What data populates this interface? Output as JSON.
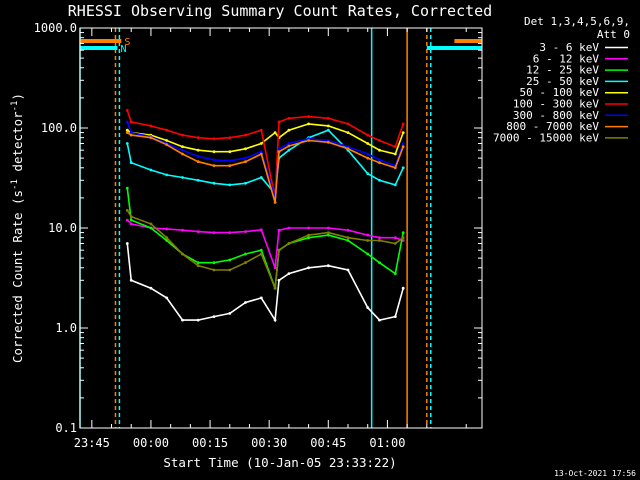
{
  "chart_data": {
    "type": "line",
    "title": "RHESSI Observing Summary Count Rates, Corrected",
    "xlabel": "Start Time (10-Jan-05 23:33:22)",
    "ylabel": "Corrected Count Rate (s",
    "ylabel_sup1": "-1",
    "ylabel_mid": " detector",
    "ylabel_sup2": "-1",
    "ylabel_end": ")",
    "yscale": "log",
    "ylim": [
      0.1,
      1000
    ],
    "xlim_minutes": [
      -18,
      84
    ],
    "x_tick_labels": [
      "23:45",
      "00:00",
      "00:15",
      "00:30",
      "00:45",
      "01:00"
    ],
    "x_tick_minutes": [
      -15,
      0,
      15,
      30,
      45,
      60
    ],
    "y_tick_labels": [
      "0.1",
      "1.0",
      "10.0",
      "100.0",
      "1000.0"
    ],
    "y_tick_values": [
      0.1,
      1,
      10,
      100,
      1000
    ],
    "legend_header": [
      "Det 1,3,4,5,6,9,",
      "Att 0"
    ],
    "legend_placement": "right, outside plot",
    "grid": false,
    "series": [
      {
        "name": "3 - 6 keV",
        "color": "#ffffff",
        "x": [
          -6,
          -5,
          0,
          4,
          8,
          12,
          16,
          20,
          24,
          28,
          31.5,
          32.5,
          35,
          40,
          45,
          50,
          55,
          58,
          62,
          64
        ],
        "y": [
          7,
          3,
          2.5,
          2,
          1.2,
          1.2,
          1.3,
          1.4,
          1.8,
          2.0,
          1.2,
          3.0,
          3.5,
          4.0,
          4.2,
          3.8,
          1.6,
          1.2,
          1.3,
          2.5
        ]
      },
      {
        "name": "6 - 12 keV",
        "color": "#ff00ff",
        "x": [
          -6,
          -5,
          0,
          4,
          8,
          12,
          16,
          20,
          24,
          28,
          31.5,
          32.5,
          35,
          40,
          45,
          50,
          55,
          58,
          62,
          64
        ],
        "y": [
          12,
          11,
          10,
          9.8,
          9.5,
          9.2,
          9.0,
          9.0,
          9.2,
          9.6,
          4.0,
          9.5,
          10,
          10,
          10,
          9.5,
          8.5,
          8.0,
          8.0,
          7.5
        ]
      },
      {
        "name": "12 - 25 keV",
        "color": "#00ff00",
        "x": [
          -6,
          -5,
          0,
          4,
          8,
          12,
          16,
          20,
          24,
          28,
          31.5,
          32.5,
          35,
          40,
          45,
          50,
          55,
          58,
          62,
          64
        ],
        "y": [
          25,
          12,
          10,
          7.5,
          5.5,
          4.5,
          4.5,
          4.8,
          5.5,
          6.0,
          2.5,
          6.0,
          7.0,
          8.0,
          8.5,
          7.5,
          5.5,
          4.5,
          3.5,
          9.0
        ]
      },
      {
        "name": "25 - 50 keV",
        "color": "#00ffff",
        "x": [
          -6,
          -5,
          0,
          4,
          8,
          12,
          16,
          20,
          24,
          28,
          31.5,
          32.5,
          35,
          40,
          45,
          50,
          55,
          58,
          62,
          64
        ],
        "y": [
          70,
          45,
          38,
          34,
          32,
          30,
          28,
          27,
          28,
          32,
          22,
          50,
          60,
          80,
          95,
          60,
          35,
          30,
          27,
          40
        ]
      },
      {
        "name": "50 - 100 keV",
        "color": "#ffff00",
        "x": [
          -6,
          -5,
          0,
          4,
          8,
          12,
          16,
          20,
          24,
          28,
          31.5,
          32.5,
          35,
          40,
          45,
          50,
          55,
          58,
          62,
          64
        ],
        "y": [
          95,
          90,
          85,
          75,
          65,
          60,
          58,
          58,
          62,
          70,
          90,
          80,
          95,
          110,
          105,
          90,
          70,
          60,
          55,
          90
        ]
      },
      {
        "name": "100 - 300 keV",
        "color": "#ff0000",
        "x": [
          -6,
          -5,
          0,
          4,
          8,
          12,
          16,
          20,
          24,
          28,
          31.5,
          32.5,
          35,
          40,
          45,
          50,
          55,
          58,
          62,
          64
        ],
        "y": [
          150,
          115,
          105,
          95,
          85,
          80,
          78,
          80,
          85,
          95,
          20,
          115,
          125,
          130,
          125,
          110,
          85,
          75,
          65,
          110
        ]
      },
      {
        "name": "300 - 800 keV",
        "color": "#0000ff",
        "x": [
          -6,
          -5,
          0,
          4,
          8,
          12,
          16,
          20,
          24,
          28,
          31.5,
          32.5,
          35,
          40,
          45,
          50,
          55,
          58,
          62,
          64
        ],
        "y": [
          115,
          90,
          82,
          70,
          60,
          52,
          48,
          47,
          50,
          58,
          20,
          62,
          70,
          78,
          75,
          65,
          55,
          48,
          42,
          70
        ]
      },
      {
        "name": "800 - 7000 keV",
        "color": "#ff8000",
        "x": [
          -6,
          -5,
          0,
          4,
          8,
          12,
          16,
          20,
          24,
          28,
          31.5,
          32.5,
          35,
          40,
          45,
          50,
          55,
          58,
          62,
          64
        ],
        "y": [
          90,
          85,
          80,
          68,
          55,
          46,
          42,
          42,
          46,
          55,
          18,
          58,
          66,
          75,
          72,
          62,
          50,
          45,
          40,
          65
        ]
      },
      {
        "name": "7000 - 15000 keV",
        "color": "#808000",
        "x": [
          -6,
          -5,
          0,
          4,
          8,
          12,
          16,
          20,
          24,
          28,
          31.5,
          32.5,
          35,
          40,
          45,
          50,
          55,
          58,
          62,
          64
        ],
        "y": [
          15,
          13,
          11,
          8.0,
          5.5,
          4.2,
          3.8,
          3.8,
          4.5,
          5.5,
          2.5,
          6.0,
          7.0,
          8.5,
          9.0,
          8.0,
          7.5,
          7.5,
          7.0,
          8.0
        ]
      }
    ],
    "markers": [
      {
        "label": "S",
        "color": "#ff8000",
        "segments": [
          [
            -18,
            -7.5
          ],
          [
            77,
            84
          ]
        ]
      },
      {
        "label": "N",
        "color": "#00ffff",
        "segments": [
          [
            -18,
            -8.5
          ],
          [
            70,
            84
          ]
        ]
      }
    ],
    "vlines": [
      {
        "color": "#00ffff",
        "style": "solid",
        "minute": -18
      },
      {
        "color": "#ff8000",
        "style": "dashed",
        "minute": -9
      },
      {
        "color": "#00ffff",
        "style": "dashed",
        "minute": -8
      },
      {
        "color": "#00ffff",
        "style": "solid",
        "minute": 56
      },
      {
        "color": "#ff8000",
        "style": "solid",
        "minute": 65
      },
      {
        "color": "#ff8000",
        "style": "dashed",
        "minute": 70
      },
      {
        "color": "#00ffff",
        "style": "dashed",
        "minute": 71
      }
    ],
    "footer": "13-Oct-2021 17:56"
  }
}
